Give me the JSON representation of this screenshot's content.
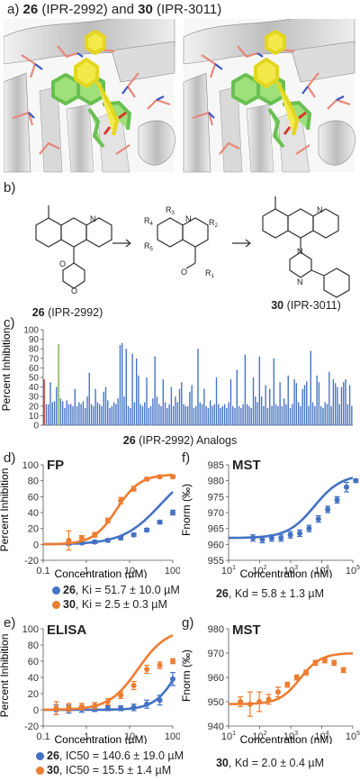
{
  "panel_a": {
    "letter": "a)",
    "c26": "26",
    "c26_code": "(IPR-2992)",
    "and": "and",
    "c30": "30",
    "c30_code": "(IPR-3011)"
  },
  "panel_b": {
    "letter": "b)",
    "c26": "26",
    "c26_code": "(IPR-2992)",
    "c30": "30",
    "c30_code": "(IPR-3011)",
    "atom_N": "N",
    "atom_O": "O",
    "R1": "R",
    "R1_sub": "1",
    "R2": "R",
    "R2_sub": "2",
    "R3": "R",
    "R3_sub": "3",
    "R4": "R",
    "R4_sub": "4",
    "R5": "R",
    "R5_sub": "5"
  },
  "panel_c": {
    "letter": "c)",
    "ylabel": "Percent Inhibition",
    "xlabel_num": "26",
    "xlabel_rest": "(IPR-2992) Analogs"
  },
  "panel_d": {
    "letter": "d)",
    "assay": "FP",
    "ylabel": "Percent Inhibition",
    "xlabel": "Concentration (µM)",
    "leg1_num": "26",
    "leg1_text": ", Ki = 51.7 ± 10.0 µM",
    "leg2_num": "30",
    "leg2_text": ", Ki = 2.5 ± 0.3 µM"
  },
  "panel_e": {
    "letter": "e)",
    "assay": "ELISA",
    "ylabel": "Percent Inhibition",
    "xlabel": "Concentration (µM)",
    "leg1_num": "26",
    "leg1_text": ", IC50 = 140.6 ± 19.0 µM",
    "leg2_num": "30",
    "leg2_text": ", IC50 = 15.5 ± 1.4 µM"
  },
  "panel_f": {
    "letter": "f)",
    "assay": "MST",
    "ylabel": "Fnorm (‰)",
    "xlabel": "Concentration (nM)",
    "cap_num": "26",
    "cap_text": ", Kd = 5.8 ± 1.3 µM"
  },
  "panel_g": {
    "letter": "g)",
    "assay": "MST",
    "ylabel": "Fnorm (‰)",
    "xlabel": "Concentration (nM)",
    "cap_num": "30",
    "cap_text": ", Kd = 2.0 ± 0.4 µM"
  },
  "colors": {
    "blue": "#4472c4",
    "orange": "#ed7d31",
    "green": "#70ad47",
    "red": "#c0392b"
  },
  "chart_data": [
    {
      "id": "c",
      "type": "bar",
      "ylim": [
        0,
        100
      ],
      "yticks": [
        0,
        10,
        20,
        30,
        40,
        50,
        60,
        70,
        80,
        90,
        100
      ],
      "values": [
        48,
        22,
        22,
        45,
        24,
        25,
        40,
        85,
        28,
        25,
        18,
        26,
        22,
        22,
        20,
        38,
        20,
        24,
        22,
        25,
        18,
        30,
        55,
        22,
        20,
        38,
        24,
        22,
        20,
        35,
        40,
        26,
        18,
        20,
        24,
        22,
        28,
        84,
        86,
        30,
        80,
        20,
        18,
        75,
        24,
        70,
        52,
        22,
        20,
        24,
        50,
        18,
        20,
        28,
        72,
        30,
        22,
        20,
        48,
        24,
        18,
        22,
        40,
        20,
        30,
        24,
        38,
        45,
        22,
        20,
        20,
        35,
        42,
        18,
        20,
        80,
        24,
        22,
        38,
        20,
        18,
        26,
        20,
        22,
        50,
        22,
        18,
        20,
        22,
        18,
        24,
        48,
        20,
        18,
        58,
        20,
        18,
        22,
        74,
        22,
        20,
        18,
        50,
        30,
        24,
        72,
        30,
        20,
        42,
        18,
        38,
        20,
        70,
        22,
        20,
        45,
        20,
        28,
        22,
        52,
        18,
        22,
        48,
        44,
        24,
        20,
        38,
        42,
        46,
        20,
        78,
        24,
        20,
        52,
        45,
        20,
        18,
        24,
        22,
        56,
        20,
        48,
        44,
        40,
        22,
        40,
        45,
        48,
        22,
        42,
        20
      ],
      "highlight": {
        "0": "#c0392b",
        "7": "#70ad47"
      }
    },
    {
      "id": "d",
      "type": "scatter",
      "xscale": "log",
      "xlim": [
        0.1,
        100
      ],
      "ylim": [
        -20,
        100
      ],
      "xticks": [
        0.1,
        1,
        10,
        100
      ],
      "yticks": [
        -20,
        0,
        20,
        40,
        60,
        80,
        100
      ],
      "series": [
        {
          "color": "blue",
          "x": [
            0.39,
            0.78,
            1.56,
            3.13,
            6.25,
            12.5,
            25,
            50,
            100
          ],
          "y": [
            2,
            2,
            3,
            5,
            8,
            12,
            18,
            28,
            40
          ],
          "err": [
            3,
            2,
            2,
            2,
            2,
            2,
            2,
            2,
            3
          ],
          "fit": {
            "model": "hill",
            "top": 100,
            "ec50": 51.7,
            "n": 1
          }
        },
        {
          "color": "orange",
          "x": [
            0.39,
            0.78,
            1.56,
            3.13,
            6.25,
            12.5,
            25,
            50,
            100
          ],
          "y": [
            5,
            8,
            12,
            30,
            55,
            70,
            82,
            85,
            85
          ],
          "err": [
            12,
            3,
            3,
            3,
            4,
            3,
            2,
            2,
            2
          ],
          "fit": {
            "model": "hill",
            "top": 88,
            "ec50": 5,
            "n": 1.6
          }
        }
      ]
    },
    {
      "id": "e",
      "type": "scatter",
      "xscale": "log",
      "xlim": [
        0.1,
        100
      ],
      "ylim": [
        -20,
        100
      ],
      "xticks": [
        0.1,
        1,
        10,
        100
      ],
      "yticks": [
        -20,
        0,
        20,
        40,
        60,
        80,
        100
      ],
      "series": [
        {
          "color": "blue",
          "x": [
            0.2,
            0.39,
            0.78,
            1.56,
            3.13,
            6.25,
            12.5,
            25,
            50,
            100
          ],
          "y": [
            0,
            1,
            1,
            1,
            2,
            2,
            3,
            7,
            12,
            38
          ],
          "err": [
            6,
            5,
            4,
            3,
            3,
            3,
            4,
            5,
            6,
            8
          ],
          "fit": {
            "model": "hill",
            "top": 100,
            "ec50": 140.6,
            "n": 1.6
          }
        },
        {
          "color": "orange",
          "x": [
            0.2,
            0.39,
            0.78,
            1.56,
            3.13,
            6.25,
            12.5,
            25,
            50,
            100
          ],
          "y": [
            2,
            3,
            4,
            5,
            10,
            18,
            30,
            50,
            55,
            60
          ],
          "err": [
            8,
            5,
            4,
            4,
            4,
            4,
            5,
            5,
            4,
            3
          ],
          "fit": {
            "model": "hill",
            "top": 100,
            "ec50": 15.5,
            "n": 1.3
          }
        }
      ]
    },
    {
      "id": "f",
      "type": "scatter",
      "xscale": "log",
      "xlim": [
        10,
        100000
      ],
      "ylim": [
        955,
        985
      ],
      "xticks": [
        10,
        100,
        1000,
        10000,
        100000
      ],
      "yticks": [
        955,
        960,
        965,
        970,
        975,
        980,
        985
      ],
      "series": [
        {
          "color": "blue",
          "x": [
            61,
            122,
            244,
            488,
            977,
            1953,
            3906,
            7813,
            15625,
            31250,
            62500,
            125000
          ],
          "y": [
            962,
            961.5,
            962,
            962,
            963,
            963.5,
            965,
            968,
            971,
            974,
            978,
            980
          ],
          "err": [
            1,
            1,
            1,
            1,
            1,
            1,
            1,
            1,
            1,
            1,
            1.5,
            0.5
          ],
          "fit": {
            "model": "hill",
            "bottom": 962,
            "top": 982,
            "ec50": 5800,
            "n": 1
          }
        }
      ]
    },
    {
      "id": "g",
      "type": "scatter",
      "xscale": "log",
      "xlim": [
        10,
        100000
      ],
      "ylim": [
        940,
        980
      ],
      "xticks": [
        10,
        100,
        1000,
        10000,
        100000
      ],
      "yticks": [
        940,
        950,
        960,
        970,
        980
      ],
      "series": [
        {
          "color": "orange",
          "x": [
            24,
            49,
            98,
            195,
            391,
            781,
            1563,
            3125,
            6250,
            12500,
            25000,
            50000
          ],
          "y": [
            950,
            949,
            950,
            951,
            954,
            957,
            960,
            962,
            966,
            967,
            966,
            963
          ],
          "err": [
            2,
            5,
            4,
            2,
            2,
            1,
            1,
            1,
            1,
            1,
            1,
            1
          ],
          "fit": {
            "model": "hill",
            "bottom": 949,
            "top": 970,
            "ec50": 2000,
            "n": 1.3
          }
        }
      ]
    }
  ]
}
